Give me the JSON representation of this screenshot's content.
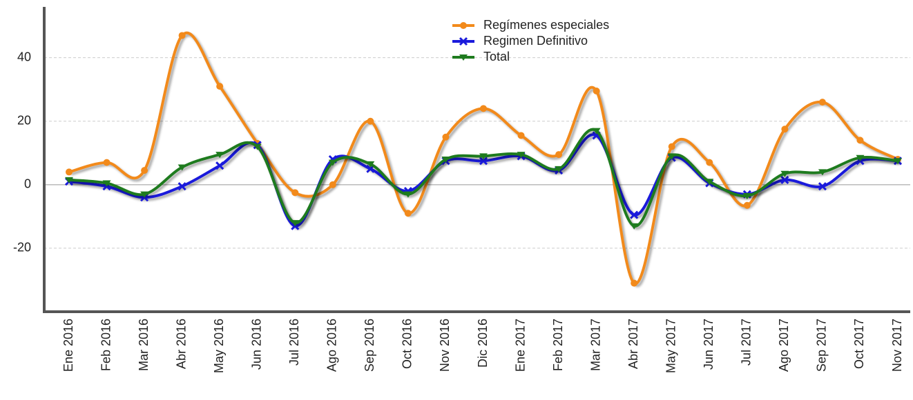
{
  "chart_data": {
    "type": "line",
    "categories": [
      "Ene 2016",
      "Feb 2016",
      "Mar 2016",
      "Abr 2016",
      "May 2016",
      "Jun 2016",
      "Jul 2016",
      "Ago 2016",
      "Sep 2016",
      "Oct 2016",
      "Nov 2016",
      "Dic 2016",
      "Ene 2017",
      "Feb 2017",
      "Mar 2017",
      "Abr 2017",
      "May 2017",
      "Jun 2017",
      "Jul 2017",
      "Ago 2017",
      "Sep 2017",
      "Oct 2017",
      "Nov 2017"
    ],
    "series": [
      {
        "name": "Regímenes especiales",
        "color": "#f28a1b",
        "marker": "circle",
        "values": [
          4,
          7,
          4.5,
          47,
          31,
          13,
          -2.5,
          0,
          20,
          -9,
          15,
          24,
          15.5,
          9.5,
          29.5,
          -31,
          12,
          7,
          -6.5,
          17.5,
          26,
          14,
          8
        ]
      },
      {
        "name": "Regimen Definitivo",
        "color": "#1a1adb",
        "marker": "x",
        "values": [
          1,
          -0.5,
          -4,
          -0.5,
          6,
          12.5,
          -13,
          8,
          5,
          -2,
          7.5,
          7.5,
          9,
          4.5,
          15.5,
          -9.5,
          8.5,
          0.5,
          -3,
          1.5,
          -0.5,
          7.5,
          7.5
        ]
      },
      {
        "name": "Total",
        "color": "#1e7b1e",
        "marker": "triangle-down",
        "values": [
          1.5,
          0.5,
          -3,
          5.5,
          9.5,
          12,
          -12,
          7,
          6.5,
          -3,
          8,
          9,
          9.5,
          5,
          17,
          -13,
          9,
          1,
          -3.5,
          3.5,
          4,
          8.5,
          7.5
        ]
      }
    ],
    "ylim": [
      -40,
      56
    ],
    "yticks": [
      -20,
      0,
      20,
      40
    ],
    "grid": true,
    "legend": "top"
  }
}
